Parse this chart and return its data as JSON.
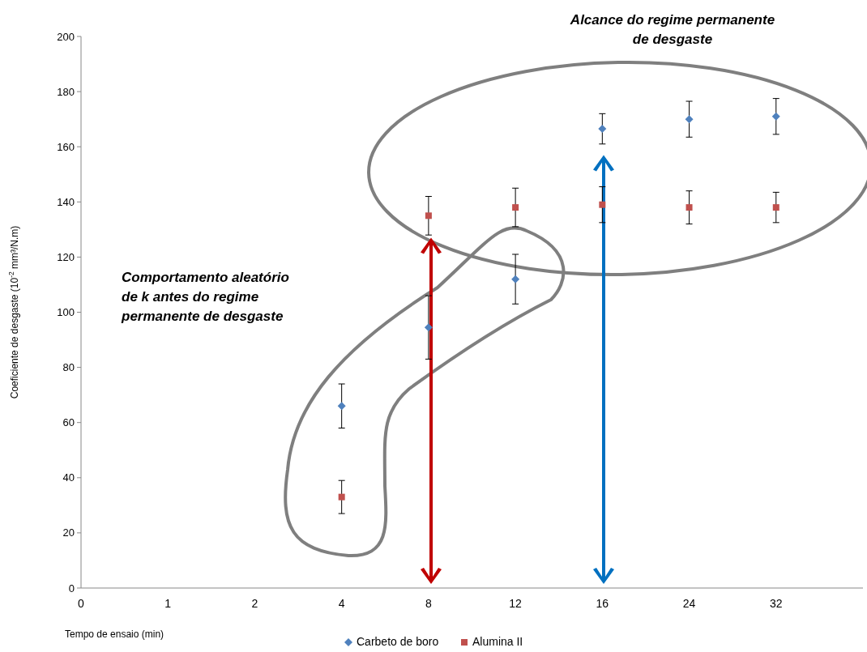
{
  "chart_data": {
    "type": "scatter",
    "xlabel": "Tempo de ensaio (min)",
    "ylabel": "Coeficiente de desgaste (10$^{-2}$ mm³/N.m)",
    "categories": [
      "0",
      "1",
      "2",
      "4",
      "8",
      "12",
      "16",
      "24",
      "32",
      null
    ],
    "ylim": [
      0,
      200
    ],
    "yticks": [
      0,
      20,
      40,
      60,
      80,
      100,
      120,
      140,
      160,
      180,
      200
    ],
    "grid": false,
    "legend": "bottom",
    "series": [
      {
        "name": "Carbeto de boro",
        "color": "#4f81bd",
        "marker": "diamond",
        "values": [
          null,
          null,
          null,
          66,
          94.5,
          112,
          166.5,
          170,
          171,
          null
        ],
        "errors": [
          null,
          null,
          null,
          8,
          11.5,
          9,
          5.5,
          6.5,
          6.5,
          null
        ]
      },
      {
        "name": "Alumina II",
        "color": "#c0504d",
        "marker": "square",
        "values": [
          null,
          null,
          null,
          33,
          135,
          138,
          139,
          138,
          138,
          null
        ],
        "errors": [
          null,
          null,
          null,
          6,
          7,
          7,
          6.5,
          6,
          5.5,
          null
        ]
      }
    ],
    "annotations": [
      "Alcance do regime permanente\nde desgaste",
      "Comportamento aleatório\nde k antes do regime\npermanente de desgaste"
    ]
  }
}
